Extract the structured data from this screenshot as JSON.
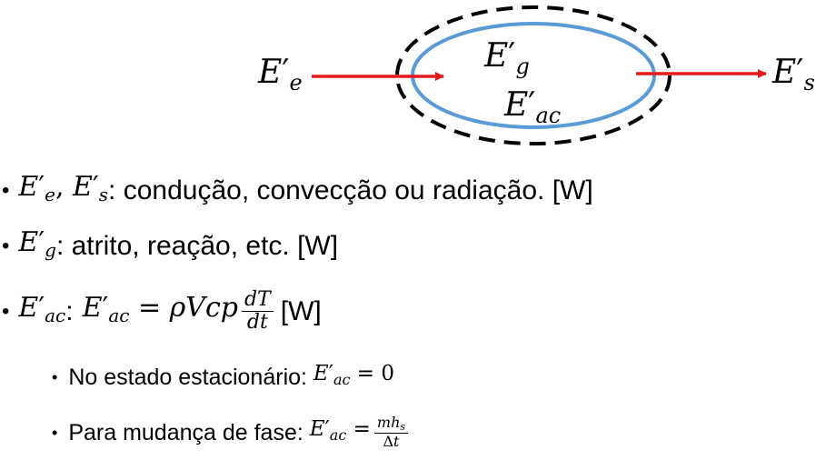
{
  "diagram": {
    "inflow_label": {
      "base": "E",
      "prime": "′",
      "sub": "e"
    },
    "outflow_label": {
      "base": "E",
      "prime": "′",
      "sub": "s"
    },
    "generation_label": {
      "base": "E",
      "prime": "′",
      "sub": "g"
    },
    "accumulation_label": {
      "base": "E",
      "prime": "′",
      "sub": "ac"
    },
    "colors": {
      "system_boundary": "#5b9bd5",
      "control_surface": "#000000",
      "arrows": "#e31a1c"
    }
  },
  "bullets": [
    {
      "terms": "E′e, E′s",
      "sep": ":",
      "text": " condução, convecção ou radiação. [W]"
    },
    {
      "terms": "E′g",
      "sep": ":",
      "text": " atrito, reação, etc. [W]"
    },
    {
      "terms": "E′ac",
      "sep": ":",
      "formula_lhs": "E′ac = ρVcp",
      "frac_num": "dT",
      "frac_den": "dt",
      "unit": "[W]"
    }
  ],
  "sub_bullets": [
    {
      "text": "No estado estacionário: ",
      "formula": "E′ac = 0"
    },
    {
      "text": "Para mudança de fase: ",
      "formula_lhs": "E′ac =",
      "frac_num": "mhs",
      "frac_den": "Δt"
    }
  ]
}
